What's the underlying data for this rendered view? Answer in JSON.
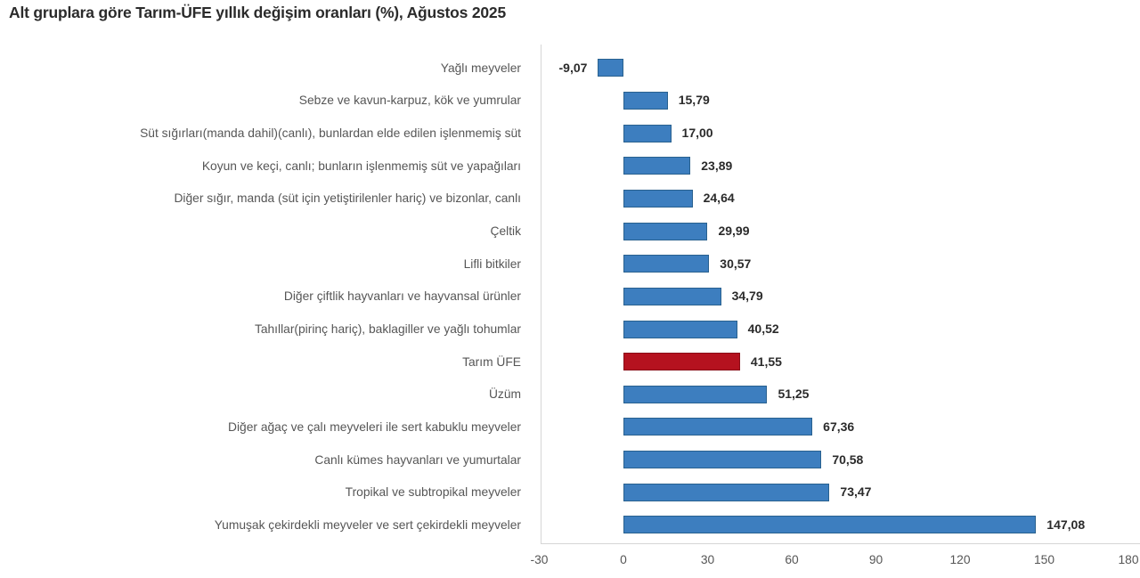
{
  "chart_data": {
    "type": "bar",
    "orientation": "horizontal",
    "title": "Alt gruplara göre Tarım-ÜFE yıllık değişim oranları (%), Ağustos 2025",
    "categories": [
      "Yağlı meyveler",
      "Sebze ve kavun-karpuz, kök ve yumrular",
      "Süt sığırları(manda dahil)(canlı), bunlardan elde edilen işlenmemiş süt",
      "Koyun ve keçi, canlı; bunların işlenmemiş süt ve yapağıları",
      "Diğer sığır, manda (süt için yetiştirilenler hariç) ve bizonlar, canlı",
      "Çeltik",
      "Lifli bitkiler",
      "Diğer çiftlik hayvanları ve hayvansal ürünler",
      "Tahıllar(pirinç hariç), baklagiller ve yağlı tohumlar",
      "Tarım ÜFE",
      "Üzüm",
      "Diğer ağaç ve çalı meyveleri ile sert kabuklu meyveler",
      "Canlı kümes hayvanları ve yumurtalar",
      "Tropikal ve subtropikal meyveler",
      "Yumuşak çekirdekli meyveler ve sert çekirdekli meyveler"
    ],
    "values": [
      -9.07,
      15.79,
      17.0,
      23.89,
      24.64,
      29.99,
      30.57,
      34.79,
      40.52,
      41.55,
      51.25,
      67.36,
      70.58,
      73.47,
      147.08
    ],
    "value_labels": [
      "-9,07",
      "15,79",
      "17,00",
      "23,89",
      "24,64",
      "29,99",
      "30,57",
      "34,79",
      "40,52",
      "41,55",
      "51,25",
      "67,36",
      "70,58",
      "73,47",
      "147,08"
    ],
    "highlight_category": "Tarım ÜFE",
    "highlight_index": 9,
    "xlim": [
      -30,
      180
    ],
    "x_ticks": [
      -30,
      0,
      30,
      60,
      90,
      120,
      150,
      180
    ],
    "x_tick_labels": [
      "-30",
      "0",
      "30",
      "60",
      "90",
      "120",
      "150",
      "180"
    ],
    "grid": false,
    "legend": "none",
    "colors": {
      "bar_fill": "#3d7ebf",
      "bar_border": "#29618f",
      "highlight_fill": "#b5121f",
      "highlight_border": "#8a0e18",
      "axis_line": "#d6d6d6",
      "title_text": "#2b2b2b",
      "category_text": "#565656",
      "value_text": "#2b2b2b",
      "tick_text": "#565656"
    }
  }
}
